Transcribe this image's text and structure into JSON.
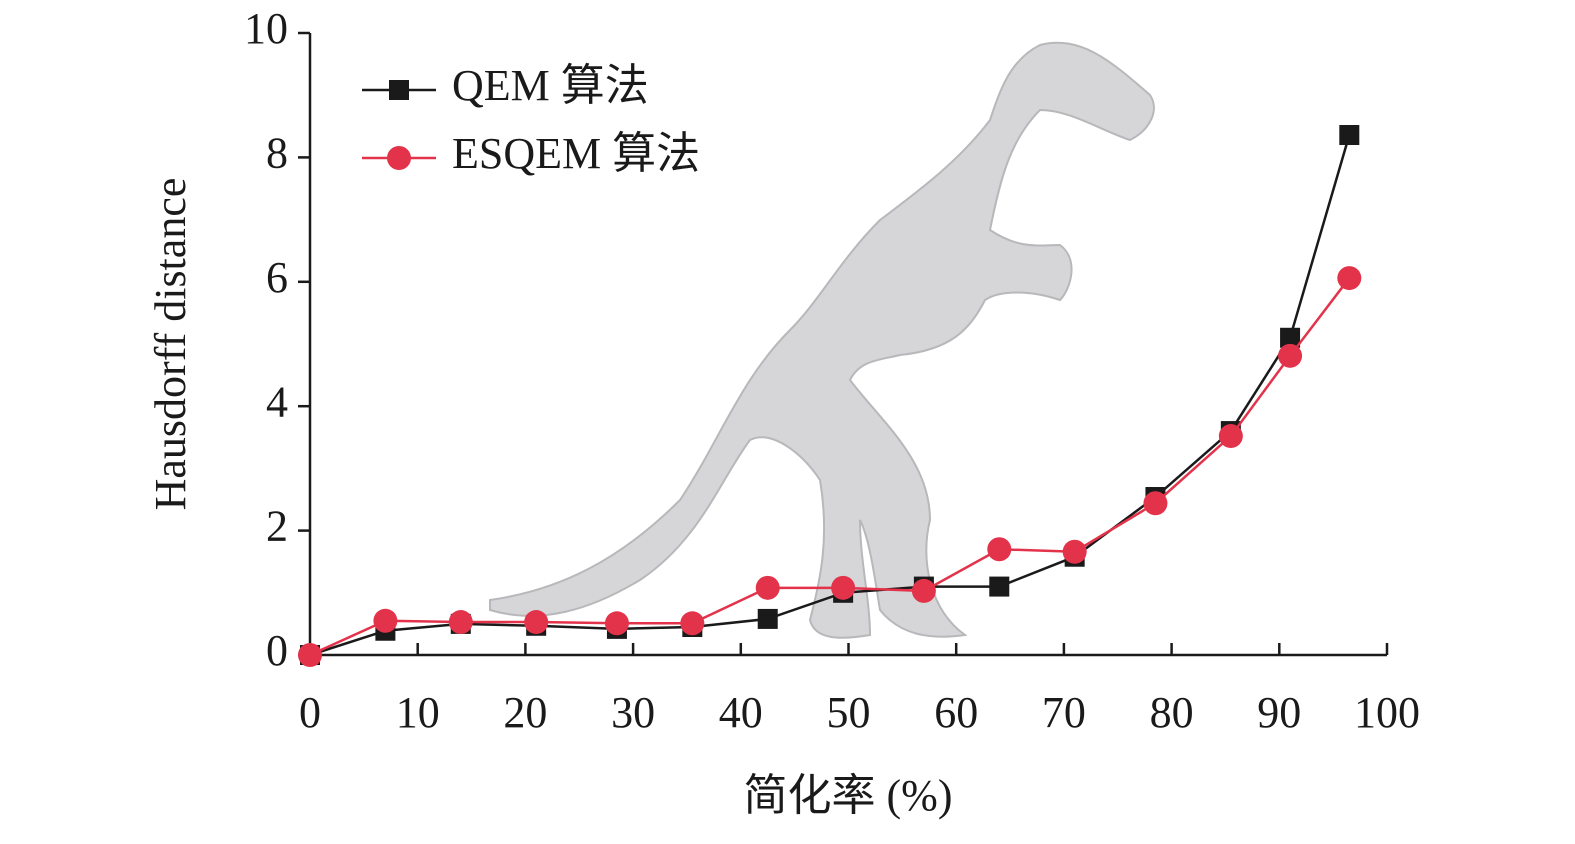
{
  "chart_data": {
    "type": "line",
    "x_label": "简化率 (%)",
    "y_label": "Hausdorff distance",
    "x": [
      0,
      7,
      14,
      21,
      28.5,
      35.5,
      42.5,
      49.5,
      57,
      64,
      71,
      78.5,
      85.5,
      91,
      96.5
    ],
    "series": [
      {
        "name": "QEM 算法",
        "color": "#1a1a1a",
        "marker": "square",
        "values": [
          0,
          0.39,
          0.5,
          0.47,
          0.42,
          0.45,
          0.58,
          1.0,
          1.1,
          1.1,
          1.58,
          2.54,
          3.6,
          5.1,
          8.36
        ]
      },
      {
        "name": "ESQEM 算法",
        "color": "#e3334b",
        "marker": "circle",
        "values": [
          0,
          0.55,
          0.53,
          0.53,
          0.51,
          0.51,
          1.08,
          1.08,
          1.03,
          1.7,
          1.66,
          2.44,
          3.52,
          4.81,
          6.06
        ]
      }
    ],
    "xlim": [
      0,
      100
    ],
    "xticks": [
      0,
      10,
      20,
      30,
      40,
      50,
      60,
      70,
      80,
      90,
      100
    ],
    "ylim": [
      0,
      10
    ],
    "yticks": [
      0,
      2,
      4,
      6,
      8,
      10
    ],
    "grid": false,
    "legend": "upper left"
  }
}
